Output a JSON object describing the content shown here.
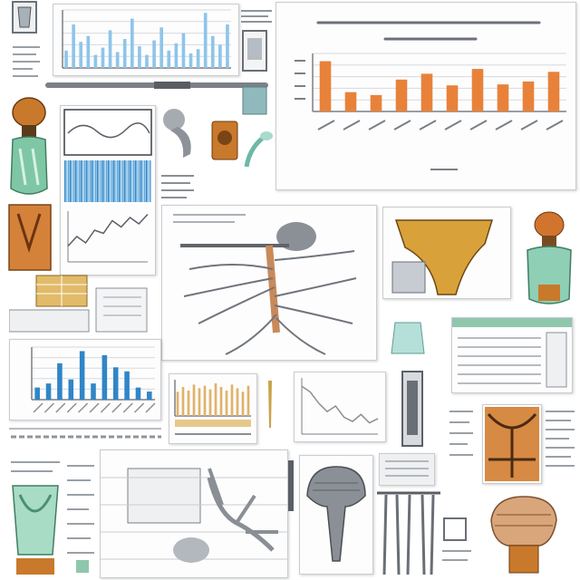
{
  "colors": {
    "bar_orange": "#e8823a",
    "bar_blue": "#2f86c8",
    "bar_light_blue": "#8ec5ea",
    "bar_tan": "#e0b36a",
    "grid": "#d6d9dd",
    "glass_green": "#7fc7a4",
    "amber": "#c9792b",
    "sketch": "#7a7f86"
  },
  "icons": [
    "glass-bottle-icon",
    "amber-skull-icon",
    "fungus-specimen-icon",
    "root-system-illustration",
    "lamp-specimen-icon",
    "hourglass-specimen-icon"
  ],
  "charts": [
    {
      "id": "main-orange-bar",
      "chart_data": {
        "type": "bar",
        "values": [
          52,
          20,
          17,
          33,
          39,
          27,
          44,
          28,
          31,
          41
        ],
        "ylim": [
          0,
          60
        ],
        "grid": true
      }
    },
    {
      "id": "top-left-bar",
      "chart_data": {
        "type": "bar",
        "values": [
          12,
          30,
          18,
          22,
          9,
          14,
          26,
          11,
          20,
          34,
          15,
          9,
          19,
          28,
          12,
          17,
          24,
          10,
          13,
          38,
          22,
          16,
          30
        ],
        "ylim": [
          0,
          40
        ],
        "grid": true
      }
    },
    {
      "id": "mid-left-blue-bar",
      "chart_data": {
        "type": "bar",
        "values": [
          6,
          8,
          18,
          10,
          24,
          8,
          22,
          16,
          14,
          6,
          4
        ],
        "ylim": [
          0,
          26
        ],
        "grid": true
      }
    },
    {
      "id": "center-tan-bar",
      "chart_data": {
        "type": "bar",
        "values": [
          20,
          24,
          21,
          26,
          23,
          25,
          22,
          27,
          24,
          21,
          26,
          23,
          20,
          25
        ],
        "ylim": [
          0,
          30
        ]
      }
    },
    {
      "id": "center-decline-line",
      "chart_data": {
        "type": "line",
        "y": [
          34,
          30,
          22,
          16,
          20,
          12,
          9,
          14,
          8,
          11
        ],
        "ylim": [
          0,
          40
        ]
      }
    },
    {
      "id": "left-wave-line",
      "chart_data": {
        "type": "line",
        "y": [
          10,
          16,
          12,
          20,
          18,
          26,
          22,
          28,
          24,
          30
        ],
        "ylim": [
          0,
          32
        ]
      }
    }
  ]
}
